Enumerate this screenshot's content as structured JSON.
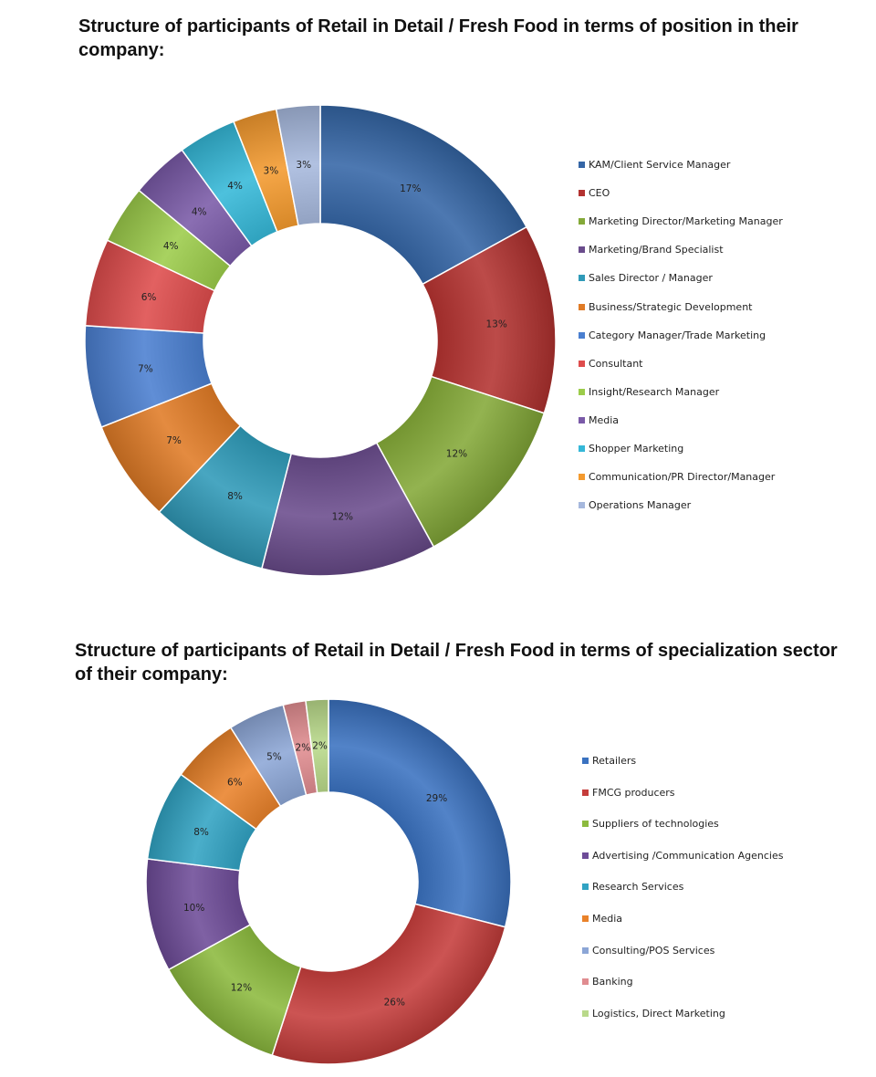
{
  "chart_data": [
    {
      "type": "pie",
      "variant": "donut",
      "title": "Structure of participants of Retail in Detail / Fresh Food in terms of position in their company:",
      "legend_position": "right",
      "slices": [
        {
          "label": "KAM/Client Service Manager",
          "value": 17,
          "text": "17%",
          "color": "#3566a6"
        },
        {
          "label": "CEO",
          "value": 13,
          "text": "13%",
          "color": "#b33230"
        },
        {
          "label": "Marketing Director/Marketing Manager",
          "value": 12,
          "text": "12%",
          "color": "#84a938"
        },
        {
          "label": "Marketing/Brand Specialist",
          "value": 12,
          "text": "12%",
          "color": "#6a4c8c"
        },
        {
          "label": "Sales Director / Manager",
          "value": 8,
          "text": "8%",
          "color": "#2f9ab8"
        },
        {
          "label": "Business/Strategic Development",
          "value": 7,
          "text": "7%",
          "color": "#e07b26"
        },
        {
          "label": "Category Manager/Trade Marketing",
          "value": 7,
          "text": "7%",
          "color": "#4a7fd0"
        },
        {
          "label": "Consultant",
          "value": 6,
          "text": "6%",
          "color": "#de4c4c"
        },
        {
          "label": "Insight/Research Manager",
          "value": 4,
          "text": "4%",
          "color": "#9ccc4a"
        },
        {
          "label": "Media",
          "value": 4,
          "text": "4%",
          "color": "#7a5aa8"
        },
        {
          "label": "Shopper Marketing",
          "value": 4,
          "text": "4%",
          "color": "#35b8d8"
        },
        {
          "label": "Communication/PR  Director/Manager",
          "value": 3,
          "text": "3%",
          "color": "#f49a2e"
        },
        {
          "label": "Operations Manager",
          "value": 3,
          "text": "3%",
          "color": "#a6b8dd"
        }
      ]
    },
    {
      "type": "pie",
      "variant": "donut",
      "title": "Structure of participants of Retail in Detail / Fresh Food in terms of specialization sector of their company:",
      "legend_position": "right",
      "slices": [
        {
          "label": "Retailers",
          "value": 29,
          "text": "29%",
          "color": "#3a72c0"
        },
        {
          "label": "FMCG producers",
          "value": 26,
          "text": "26%",
          "color": "#c53d3b"
        },
        {
          "label": "Suppliers of technologies",
          "value": 12,
          "text": "12%",
          "color": "#8cba3e"
        },
        {
          "label": "Advertising /Communication Agencies",
          "value": 10,
          "text": "10%",
          "color": "#6e4c98"
        },
        {
          "label": "Research Services",
          "value": 8,
          "text": "8%",
          "color": "#31a3c3"
        },
        {
          "label": "Media",
          "value": 6,
          "text": "6%",
          "color": "#e9822a"
        },
        {
          "label": "Consulting/POS Services",
          "value": 5,
          "text": "5%",
          "color": "#8ca6d6"
        },
        {
          "label": "Banking",
          "value": 2,
          "text": "2%",
          "color": "#e08c90"
        },
        {
          "label": "Logistics, Direct Marketing",
          "value": 2,
          "text": "2%",
          "color": "#b9d98a"
        }
      ]
    }
  ]
}
